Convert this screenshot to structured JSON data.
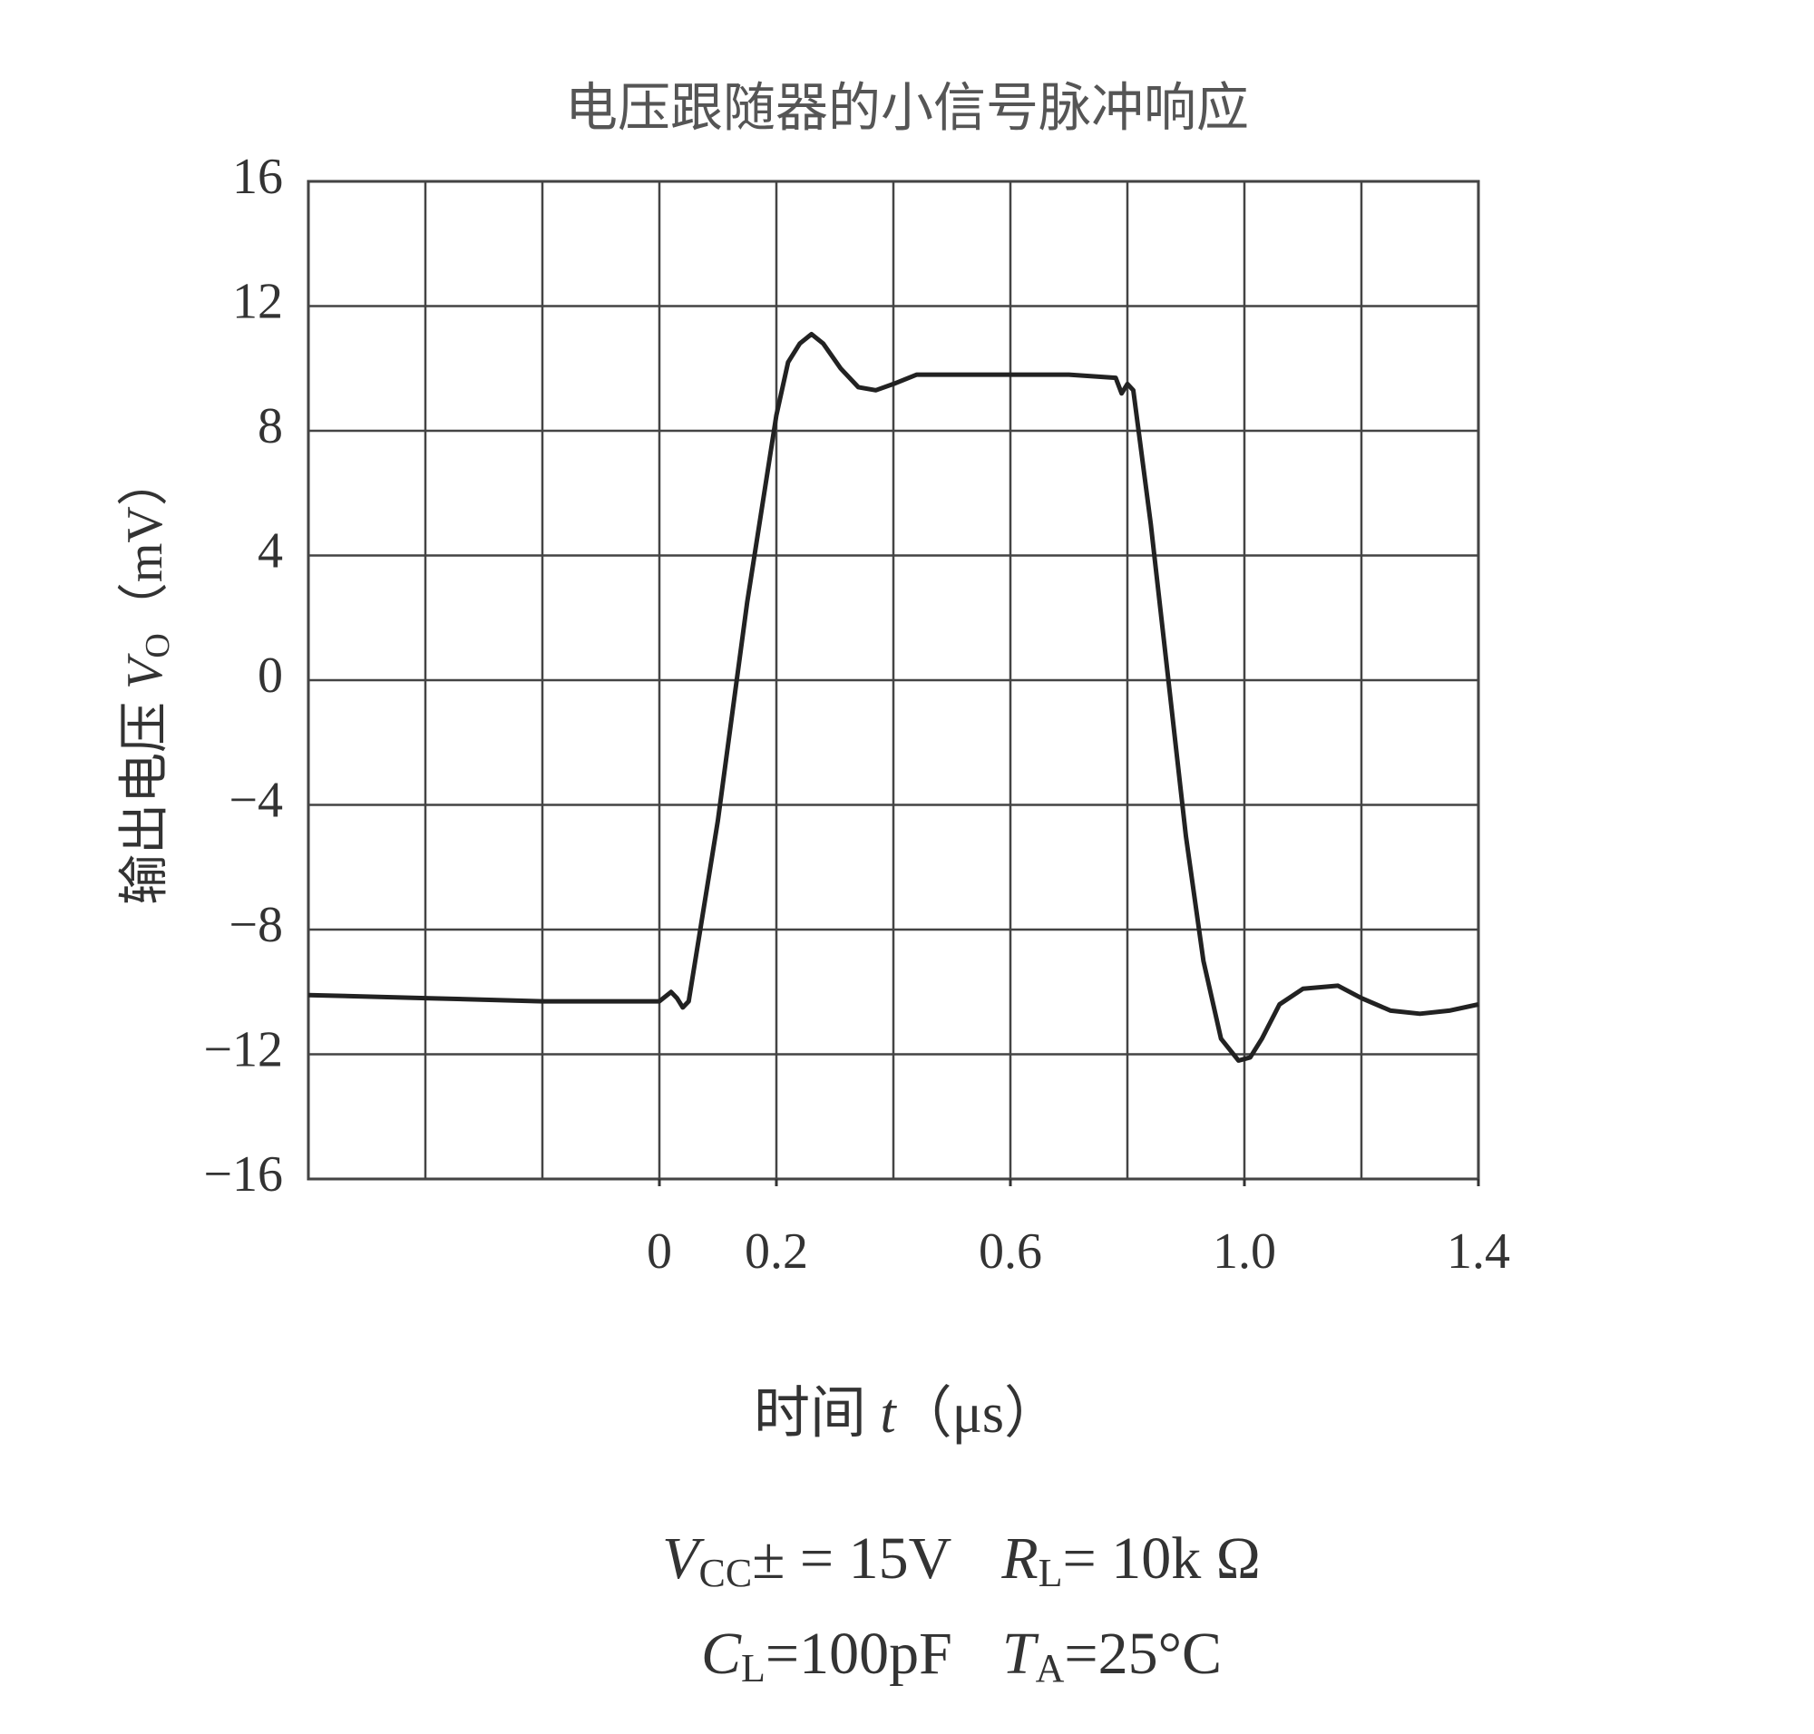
{
  "chart_data": {
    "type": "line",
    "title": "电压跟随器的小信号脉冲响应",
    "ylabel": {
      "prefix": "输出电压 ",
      "symbol": "V",
      "subscript": "O",
      "unit": "（mV）"
    },
    "xlabel": {
      "prefix": "时间 ",
      "symbol": "t",
      "unit": "（μs）"
    },
    "conditions": [
      [
        {
          "symbol": "V",
          "subscript": "CC",
          "text": "± = 15V"
        },
        {
          "symbol": "R",
          "subscript": "L",
          "text": "= 10k Ω"
        }
      ],
      [
        {
          "symbol": "C",
          "subscript": "L",
          "text": "=100pF"
        },
        {
          "symbol": "T",
          "subscript": "A",
          "text": "=25°C"
        }
      ]
    ],
    "x": [
      -0.6,
      -0.4,
      -0.2,
      0,
      0.02,
      0.03,
      0.04,
      0.05,
      0.1,
      0.15,
      0.2,
      0.22,
      0.24,
      0.26,
      0.28,
      0.31,
      0.34,
      0.37,
      0.4,
      0.44,
      0.5,
      0.6,
      0.7,
      0.78,
      0.79,
      0.8,
      0.81,
      0.84,
      0.87,
      0.9,
      0.93,
      0.96,
      0.99,
      1.01,
      1.03,
      1.06,
      1.1,
      1.16,
      1.2,
      1.25,
      1.3,
      1.35,
      1.4
    ],
    "values": [
      -10.1,
      -10.2,
      -10.3,
      -10.3,
      -10.0,
      -10.2,
      -10.5,
      -10.3,
      -4.5,
      2.5,
      8.5,
      10.2,
      10.8,
      11.1,
      10.8,
      10.0,
      9.4,
      9.3,
      9.5,
      9.8,
      9.8,
      9.8,
      9.8,
      9.7,
      9.2,
      9.5,
      9.3,
      5.0,
      0.0,
      -5.0,
      -9.0,
      -11.5,
      -12.2,
      -12.1,
      -11.5,
      -10.4,
      -9.9,
      -9.8,
      -10.2,
      -10.6,
      -10.7,
      -10.6,
      -10.4
    ],
    "color": "#222222",
    "xlim": [
      -0.6,
      1.4
    ],
    "xticks": [
      0,
      0.2,
      0.6,
      {
        "value": 1,
        "label": "1.0"
      },
      1.4
    ],
    "xgrid": [
      -0.6,
      -0.4,
      -0.2,
      0,
      0.2,
      0.4,
      0.6,
      0.8,
      1,
      1.2,
      1.4
    ],
    "ylim": [
      -16,
      16
    ],
    "yticks": [
      16,
      12,
      8,
      4,
      0,
      {
        "value": -4,
        "label": "−4"
      },
      {
        "value": -8,
        "label": "−8"
      },
      {
        "value": -12,
        "label": "−12"
      },
      {
        "value": -16,
        "label": "−16"
      }
    ],
    "grid": true
  }
}
